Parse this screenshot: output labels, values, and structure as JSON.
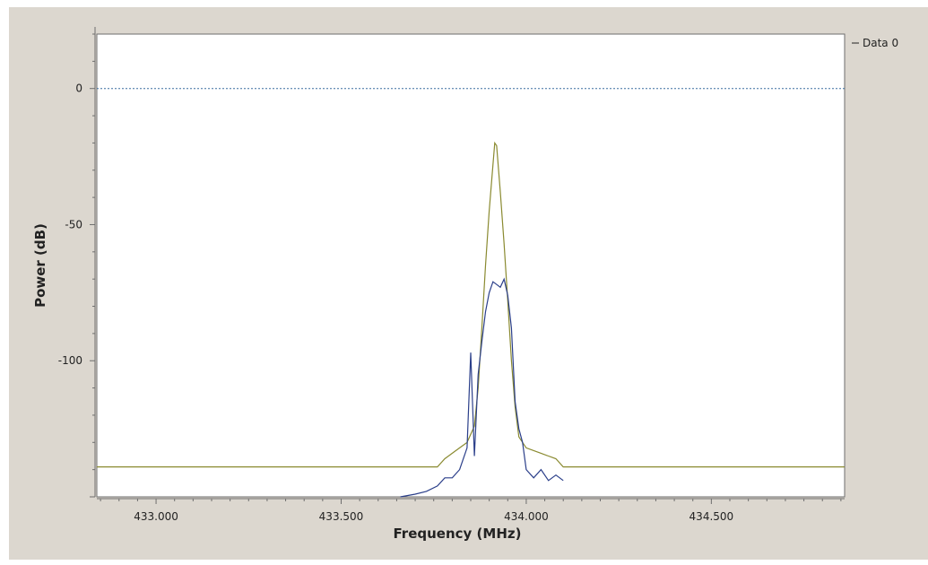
{
  "colors": {
    "frame_bg": "#dcd7cf",
    "plot_bg": "#ffffff",
    "zero_line": "#3a6fa0",
    "max_hold_trace": "#8a8a30",
    "spectrum_trace": "#2b3f8a"
  },
  "legend": {
    "label": "Data 0",
    "placement": "top-right"
  },
  "chart_data": {
    "type": "line",
    "xlabel": "Frequency (MHz)",
    "ylabel": "Power (dB)",
    "xlim": [
      432.84,
      434.86
    ],
    "ylim": [
      -150,
      20
    ],
    "x_ticks": [
      433.0,
      433.5,
      434.0,
      434.5
    ],
    "x_tick_labels": [
      "433.000",
      "433.500",
      "434.000",
      "434.500"
    ],
    "y_ticks": [
      0,
      -50,
      -100
    ],
    "y_tick_labels": [
      "0",
      "-50",
      "-100"
    ],
    "grid": false,
    "reference_line": {
      "y": 0,
      "style": "dotted"
    },
    "series": [
      {
        "name": "Data 0",
        "style": "solid",
        "x": [
          432.84,
          433.76,
          433.78,
          433.8,
          433.82,
          433.84,
          433.86,
          433.87,
          433.88,
          433.89,
          433.9,
          433.91,
          433.915,
          433.92,
          433.93,
          433.94,
          433.95,
          433.96,
          433.97,
          433.98,
          434.0,
          434.02,
          434.04,
          434.06,
          434.08,
          434.1,
          434.86
        ],
        "y": [
          -139,
          -139,
          -136,
          -134,
          -132,
          -130,
          -124,
          -110,
          -88,
          -65,
          -45,
          -28,
          -20,
          -21,
          -38,
          -57,
          -78,
          -100,
          -117,
          -128,
          -132,
          -133,
          -134,
          -135,
          -136,
          -139,
          -139
        ]
      },
      {
        "style": "solid",
        "x": [
          433.66,
          433.7,
          433.73,
          433.76,
          433.78,
          433.8,
          433.82,
          433.84,
          433.85,
          433.86,
          433.87,
          433.88,
          433.89,
          433.9,
          433.91,
          433.92,
          433.93,
          433.94,
          433.95,
          433.96,
          433.97,
          433.98,
          433.99,
          434.0,
          434.02,
          434.04,
          434.06,
          434.08,
          434.1
        ],
        "y": [
          -150,
          -149,
          -148,
          -146,
          -143,
          -143,
          -140,
          -132,
          -97,
          -135,
          -105,
          -93,
          -82,
          -75,
          -71,
          -72,
          -73,
          -70,
          -76,
          -88,
          -115,
          -125,
          -130,
          -140,
          -143,
          -140,
          -144,
          -142,
          -144
        ]
      }
    ]
  }
}
